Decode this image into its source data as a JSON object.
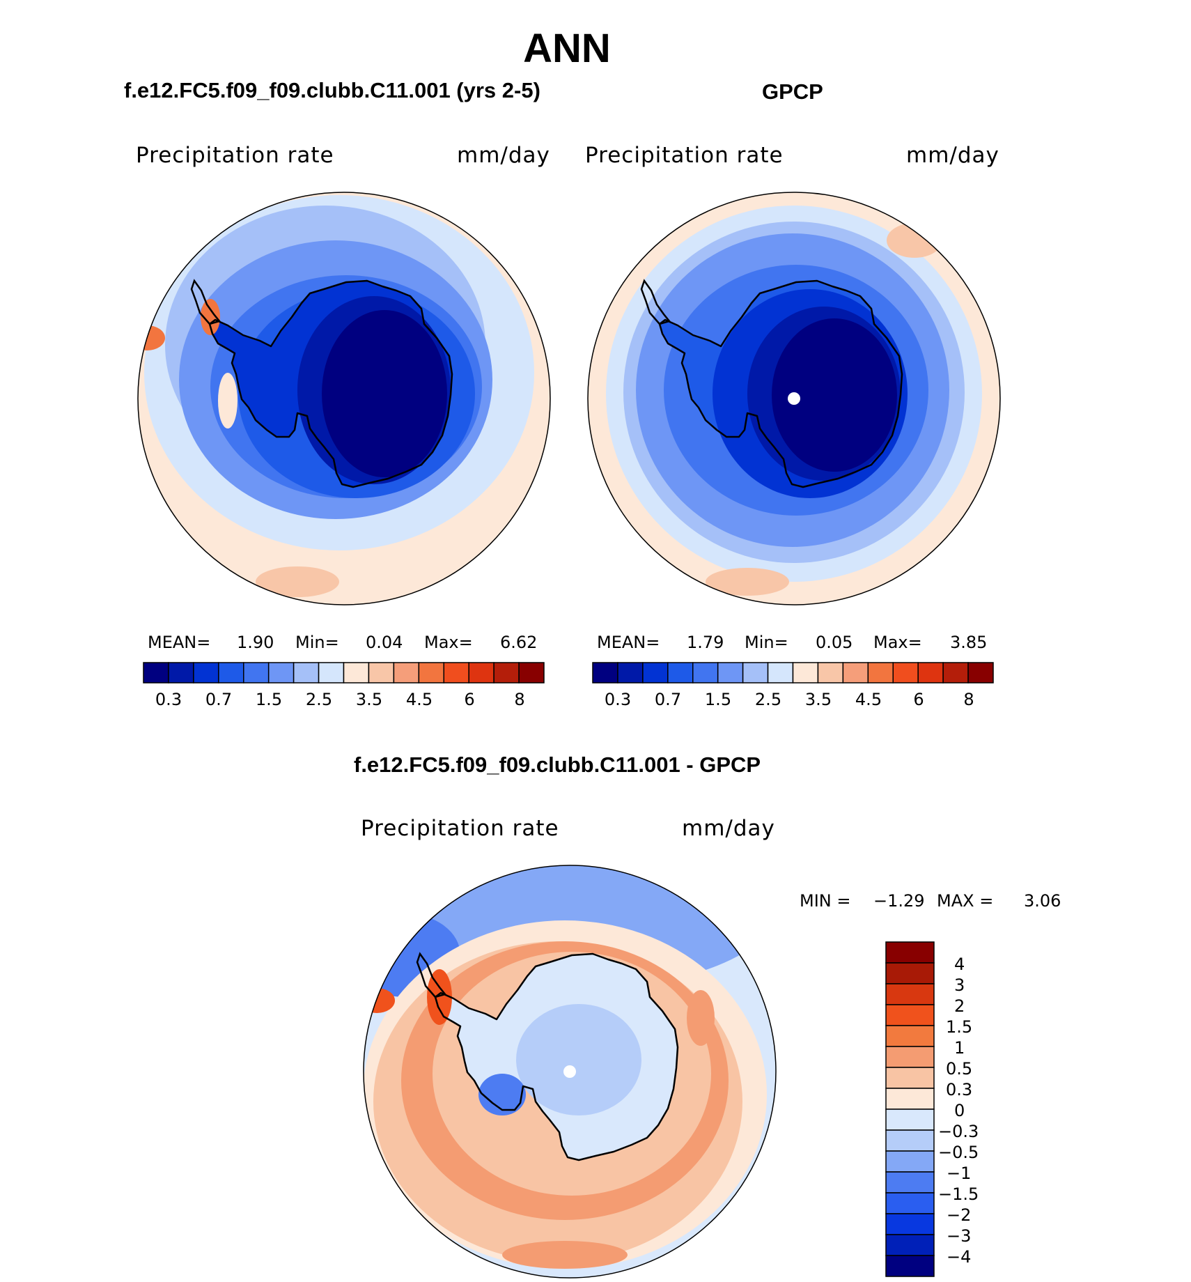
{
  "figure": {
    "title": "ANN",
    "colors": {
      "abs_scale": [
        "#000080",
        "#0019a8",
        "#0233d3",
        "#1e5ae8",
        "#4175f0",
        "#6e96f5",
        "#a5c0f8",
        "#d5e6fc",
        "#fde8d8",
        "#f8c6a8",
        "#f59e7a",
        "#f2753f",
        "#f04e1e",
        "#de3410",
        "#b41e0a",
        "#880000"
      ],
      "diff_scale": [
        "#000080",
        "#0020b8",
        "#0838e0",
        "#2a5ef0",
        "#4d7cf2",
        "#84a8f6",
        "#b5cdf9",
        "#d9e8fc",
        "#fde8d8",
        "#f8c4a4",
        "#f49c72",
        "#f27a3e",
        "#f0521c",
        "#d83810",
        "#a81a06",
        "#880000"
      ],
      "coast": "#000000",
      "border": "#000000"
    }
  },
  "chart_data": [
    {
      "type": "heatmap",
      "projection": "south-polar-stereographic",
      "title": "f.e12.FC5.f09_f09.clubb.C11.001 (yrs 2-5)",
      "variable": "Precipitation rate",
      "units": "mm/day",
      "stats": {
        "mean_label": "MEAN=",
        "mean": "1.90",
        "min_label": "Min=",
        "min": "0.04",
        "max_label": "Max=",
        "max": "6.62"
      },
      "contour_levels": [
        0.2,
        0.3,
        0.5,
        0.7,
        1,
        1.5,
        2,
        2.5,
        3,
        3.5,
        4,
        4.5,
        5,
        6,
        7,
        8
      ],
      "colorbar_tick_labels": [
        "0.3",
        "0.7",
        "1.5",
        "2.5",
        "3.5",
        "4.5",
        "6",
        "8"
      ],
      "colorbar_orientation": "horizontal"
    },
    {
      "type": "heatmap",
      "projection": "south-polar-stereographic",
      "title": "GPCP",
      "variable": "Precipitation rate",
      "units": "mm/day",
      "stats": {
        "mean_label": "MEAN=",
        "mean": "1.79",
        "min_label": "Min=",
        "min": "0.05",
        "max_label": "Max=",
        "max": "3.85"
      },
      "contour_levels": [
        0.2,
        0.3,
        0.5,
        0.7,
        1,
        1.5,
        2,
        2.5,
        3,
        3.5,
        4,
        4.5,
        5,
        6,
        7,
        8
      ],
      "colorbar_tick_labels": [
        "0.3",
        "0.7",
        "1.5",
        "2.5",
        "3.5",
        "4.5",
        "6",
        "8"
      ],
      "colorbar_orientation": "horizontal"
    },
    {
      "type": "heatmap",
      "projection": "south-polar-stereographic",
      "title": "f.e12.FC5.f09_f09.clubb.C11.001 - GPCP",
      "variable": "Precipitation rate",
      "units": "mm/day",
      "stats": {
        "min_label": "MIN =",
        "min": "−1.29",
        "max_label": "MAX =",
        "max": "3.06"
      },
      "contour_levels": [
        -4,
        -3,
        -2,
        -1.5,
        -1,
        -0.5,
        -0.3,
        0,
        0.3,
        0.5,
        1,
        1.5,
        2,
        3,
        4
      ],
      "colorbar_tick_labels": [
        "4",
        "3",
        "2",
        "1.5",
        "1",
        "0.5",
        "0.3",
        "0",
        "−0.3",
        "−0.5",
        "−1",
        "−1.5",
        "−2",
        "−3",
        "−4"
      ],
      "colorbar_orientation": "vertical"
    }
  ]
}
